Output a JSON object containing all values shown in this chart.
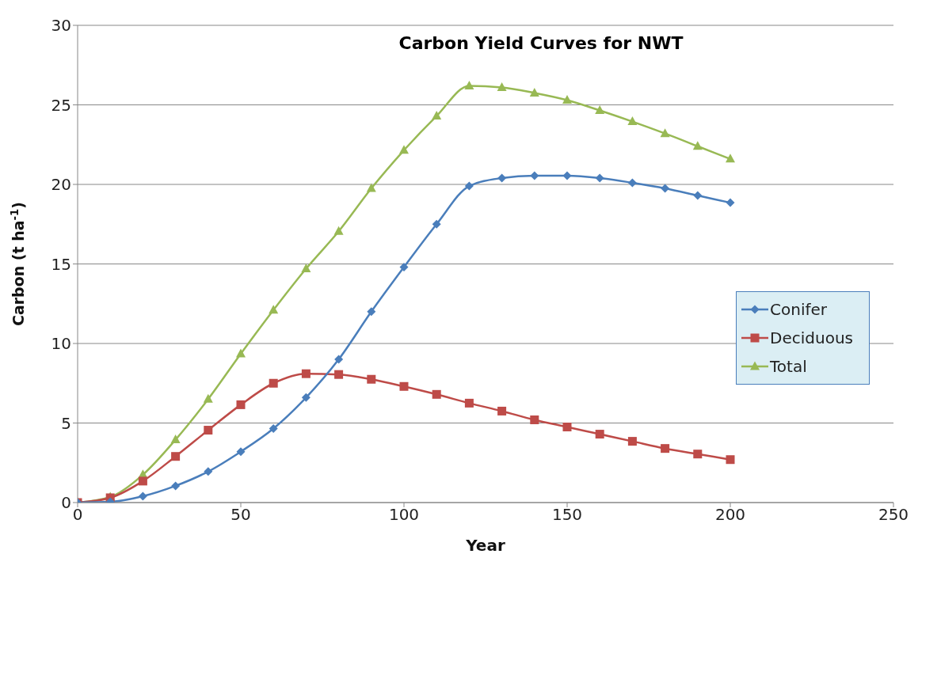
{
  "chart_data": {
    "type": "line",
    "title": "Carbon Yield Curves for NWT",
    "xlabel": "Year",
    "ylabel": "Carbon (t ha$^{-1}$)",
    "x": [
      0,
      10,
      20,
      30,
      40,
      50,
      60,
      70,
      80,
      90,
      100,
      110,
      120,
      130,
      140,
      150,
      160,
      170,
      180,
      190,
      200
    ],
    "series": [
      {
        "name": "Conifer",
        "color": "#4a7ebb",
        "marker": "diamond",
        "values": [
          0,
          0.05,
          0.4,
          1.05,
          1.95,
          3.2,
          4.65,
          6.6,
          9.0,
          12.0,
          14.8,
          17.5,
          19.9,
          20.4,
          20.55,
          20.55,
          20.4,
          20.1,
          19.75,
          19.3,
          18.85
        ]
      },
      {
        "name": "Deciduous",
        "color": "#be4b48",
        "marker": "square",
        "values": [
          0,
          0.3,
          1.35,
          2.9,
          4.55,
          6.15,
          7.5,
          8.1,
          8.05,
          7.75,
          7.3,
          6.8,
          6.25,
          5.75,
          5.2,
          4.75,
          4.3,
          3.85,
          3.4,
          3.05,
          2.7
        ]
      },
      {
        "name": "Total",
        "color": "#98b954",
        "marker": "triangle",
        "values": [
          0,
          0.35,
          1.75,
          3.95,
          6.5,
          9.35,
          12.1,
          14.7,
          17.05,
          19.75,
          22.15,
          24.3,
          26.2,
          26.1,
          25.75,
          25.3,
          24.65,
          23.95,
          23.2,
          22.4,
          21.6
        ]
      }
    ],
    "xlim": [
      0,
      250
    ],
    "xticks": [
      0,
      50,
      100,
      150,
      200,
      250
    ],
    "ylim": [
      0,
      30
    ],
    "yticks": [
      0,
      5,
      10,
      15,
      20,
      25,
      30
    ],
    "grid": "y",
    "legend": "right"
  }
}
